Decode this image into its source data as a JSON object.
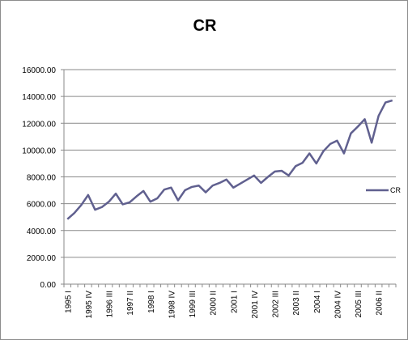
{
  "chart_data": {
    "type": "line",
    "title": "CR",
    "xlabel": "",
    "ylabel": "",
    "ylim": [
      0,
      16000
    ],
    "y_ticks": [
      "0.00",
      "2000.00",
      "4000.00",
      "6000.00",
      "8000.00",
      "10000.00",
      "12000.00",
      "14000.00",
      "16000.00"
    ],
    "x_tick_labels": [
      "1995 I",
      "1995 IV",
      "1996 III",
      "1997 II",
      "1998 I",
      "1998 IV",
      "1999 III",
      "2000 II",
      "2001 I",
      "2001 IV",
      "2002 III",
      "2003 II",
      "2004 I",
      "2004 IV",
      "2005 III",
      "2006 II"
    ],
    "categories": [
      "1995 I",
      "1995 II",
      "1995 III",
      "1995 IV",
      "1996 I",
      "1996 II",
      "1996 III",
      "1996 IV",
      "1997 I",
      "1997 II",
      "1997 III",
      "1997 IV",
      "1998 I",
      "1998 II",
      "1998 III",
      "1998 IV",
      "1999 I",
      "1999 II",
      "1999 III",
      "1999 IV",
      "2000 I",
      "2000 II",
      "2000 III",
      "2000 IV",
      "2001 I",
      "2001 II",
      "2001 III",
      "2001 IV",
      "2002 I",
      "2002 II",
      "2002 III",
      "2002 IV",
      "2003 I",
      "2003 II",
      "2003 III",
      "2003 IV",
      "2004 I",
      "2004 II",
      "2004 III",
      "2004 IV",
      "2005 I",
      "2005 II",
      "2005 III",
      "2005 IV",
      "2006 I",
      "2006 II",
      "2006 III",
      "2006 IV"
    ],
    "series": [
      {
        "name": "CR",
        "color": "#60608f",
        "values": [
          4850,
          5300,
          5900,
          6650,
          5550,
          5750,
          6150,
          6750,
          5950,
          6100,
          6550,
          6950,
          6150,
          6400,
          7050,
          7200,
          6250,
          7000,
          7250,
          7350,
          6850,
          7350,
          7550,
          7800,
          7200,
          7500,
          7800,
          8100,
          7550,
          8000,
          8400,
          8450,
          8100,
          8800,
          9050,
          9750,
          9000,
          9900,
          10450,
          10700,
          9750,
          11250,
          11750,
          12300,
          10550,
          12550,
          13550,
          13700
        ]
      }
    ],
    "grid": true,
    "legend": "right"
  }
}
